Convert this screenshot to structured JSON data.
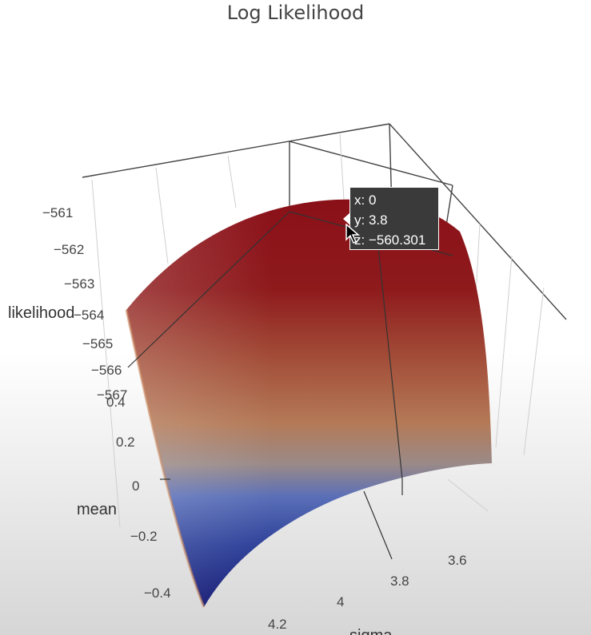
{
  "title": "Log Likelihood",
  "chart_data": {
    "type": "surface",
    "title": "Log Likelihood",
    "axes": {
      "z": {
        "label": "likelihood",
        "ticks": [
          "−561",
          "−562",
          "−563",
          "−564",
          "−565",
          "−566",
          "−567"
        ],
        "range": [
          -567,
          -560.3
        ]
      },
      "x": {
        "label": "mean",
        "ticks": [
          "0.4",
          "0.2",
          "0",
          "−0.2",
          "−0.4"
        ],
        "range": [
          -0.45,
          0.45
        ]
      },
      "y": {
        "label": "sigma",
        "ticks": [
          "3.6",
          "3.8",
          "4",
          "4.2"
        ],
        "range": [
          3.55,
          4.25
        ]
      }
    },
    "colorscale": [
      "#0a0f6e",
      "#3a57b8",
      "#b07a5c",
      "#8c1420"
    ],
    "hover": {
      "x_label": "x: 0",
      "y_label": "y: 3.8",
      "z_label": "z: −560.301"
    }
  }
}
